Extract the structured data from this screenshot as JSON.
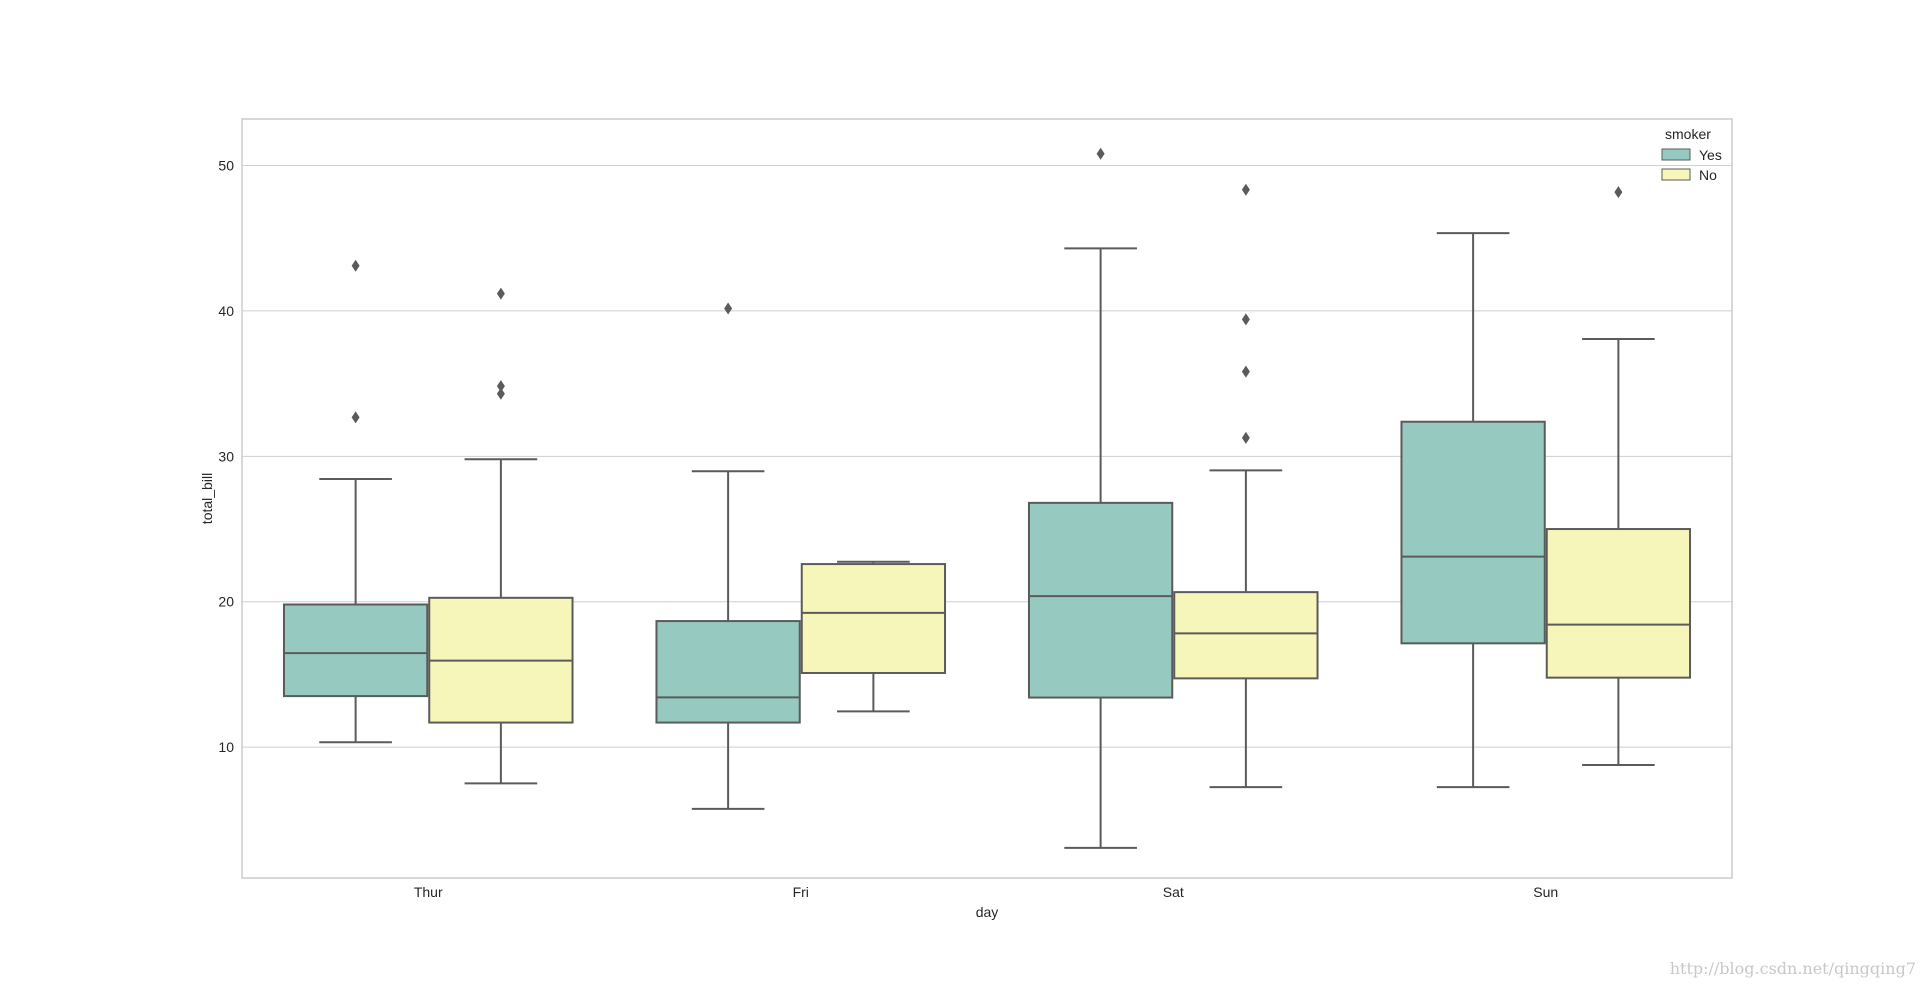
{
  "chart_data": {
    "type": "box",
    "xlabel": "day",
    "ylabel": "total_bill",
    "categories": [
      "Thur",
      "Fri",
      "Sat",
      "Sun"
    ],
    "ylim": [
      1.0,
      53.2
    ],
    "yticks": [
      10,
      20,
      30,
      40,
      50
    ],
    "grid": true,
    "legend": {
      "title": "smoker",
      "placement": "top-right"
    },
    "series": [
      {
        "name": "Yes",
        "color": "#96c9bf",
        "boxes": [
          {
            "whislo": 10.34,
            "q1": 13.51,
            "med": 16.47,
            "q3": 19.81,
            "whishi": 28.44,
            "fliers": [
              32.68,
              43.11
            ]
          },
          {
            "whislo": 5.75,
            "q1": 11.69,
            "med": 13.42,
            "q3": 18.67,
            "whishi": 28.97,
            "fliers": [
              40.17
            ]
          },
          {
            "whislo": 3.07,
            "q1": 13.41,
            "med": 20.39,
            "q3": 26.8,
            "whishi": 44.3,
            "fliers": [
              50.81
            ]
          },
          {
            "whislo": 7.25,
            "q1": 17.14,
            "med": 23.1,
            "q3": 32.38,
            "whishi": 45.35,
            "fliers": []
          }
        ]
      },
      {
        "name": "No",
        "color": "#f6f6bb",
        "boxes": [
          {
            "whislo": 7.51,
            "q1": 11.69,
            "med": 15.95,
            "q3": 20.27,
            "whishi": 29.8,
            "fliers": [
              34.3,
              34.83,
              41.19
            ]
          },
          {
            "whislo": 12.46,
            "q1": 15.1,
            "med": 19.23,
            "q3": 22.59,
            "whishi": 22.75,
            "fliers": []
          },
          {
            "whislo": 7.25,
            "q1": 14.73,
            "med": 17.82,
            "q3": 20.66,
            "whishi": 29.03,
            "fliers": [
              31.27,
              35.83,
              39.42,
              48.33
            ]
          },
          {
            "whislo": 8.77,
            "q1": 14.78,
            "med": 18.43,
            "q3": 25.0,
            "whishi": 38.07,
            "fliers": [
              48.17
            ]
          }
        ]
      }
    ]
  },
  "watermark": "http://blog.csdn.net/qingqing7"
}
